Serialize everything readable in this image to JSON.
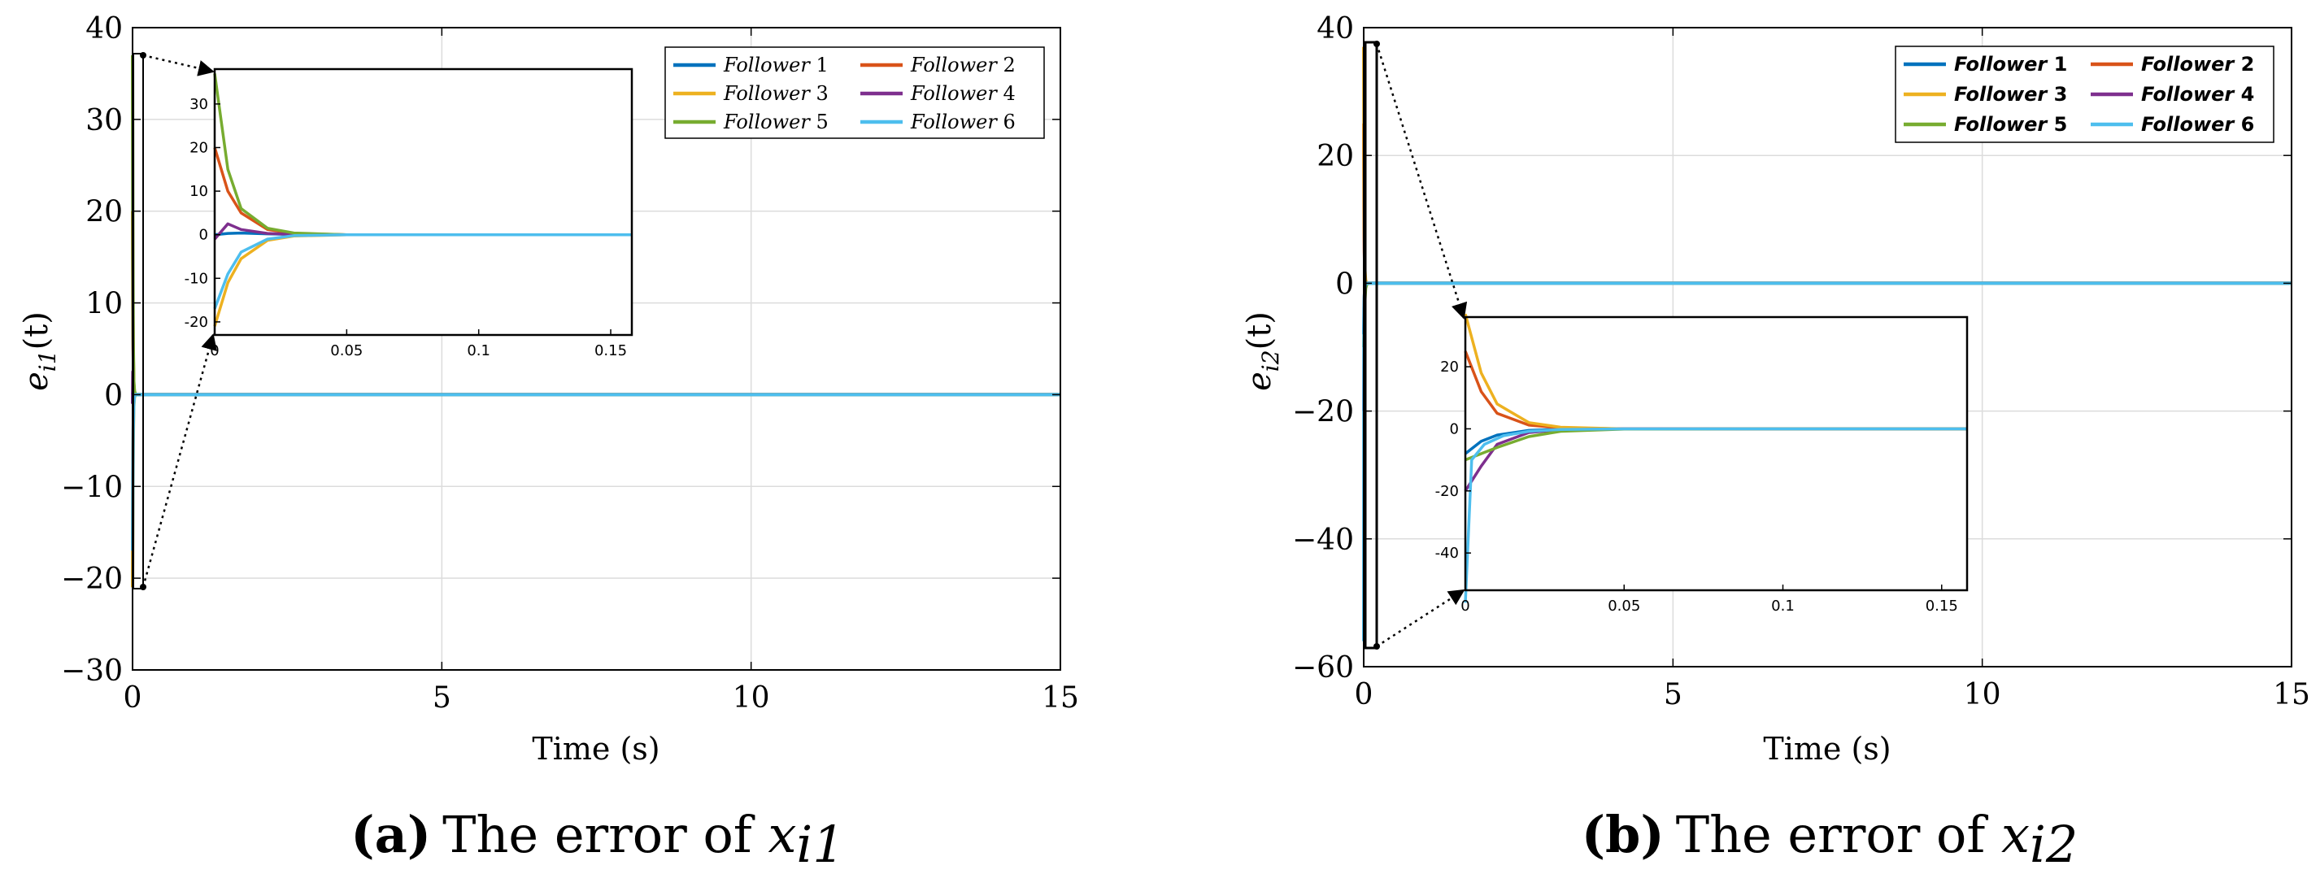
{
  "series_colors": [
    "#0072BD",
    "#D95319",
    "#EDB120",
    "#7E2F8E",
    "#77AC30",
    "#4DBEEE"
  ],
  "chart_data": [
    {
      "type": "line",
      "panel": "a",
      "title": "",
      "xlabel": "Time (s)",
      "ylabel": "e_i1(t)",
      "ylabel_main": "e",
      "ylabel_sub": "i1",
      "ylabel_tail": "(t)",
      "xlim": [
        0,
        15
      ],
      "ylim": [
        -30,
        40
      ],
      "xticks": [
        0,
        5,
        10,
        15
      ],
      "xtick_labels": [
        "0",
        "5",
        "10",
        "15"
      ],
      "yticks": [
        -30,
        -20,
        -10,
        0,
        10,
        20,
        30,
        40
      ],
      "ytick_labels": [
        "−30",
        "−20",
        "−10",
        "0",
        "10",
        "20",
        "30",
        "40"
      ],
      "grid": true,
      "legend_position": "top-right",
      "series": [
        {
          "name": "Follower 1",
          "legend_word": "Follower",
          "legend_num": "1",
          "x": [
            0,
            0.005,
            0.01,
            0.02,
            0.03,
            0.05,
            0.1,
            15
          ],
          "y": [
            0,
            0.3,
            0.4,
            0.2,
            0.05,
            0,
            0,
            0
          ]
        },
        {
          "name": "Follower 2",
          "legend_word": "Follower",
          "legend_num": "2",
          "x": [
            0,
            0.005,
            0.01,
            0.02,
            0.03,
            0.05,
            0.1,
            15
          ],
          "y": [
            20,
            10,
            5,
            1.2,
            0.3,
            0,
            0,
            0
          ]
        },
        {
          "name": "Follower 3",
          "legend_word": "Follower",
          "legend_num": "3",
          "x": [
            0,
            0.005,
            0.01,
            0.02,
            0.03,
            0.05,
            0.1,
            15
          ],
          "y": [
            -21,
            -11,
            -5.5,
            -1.3,
            -0.3,
            0,
            0,
            0
          ]
        },
        {
          "name": "Follower 4",
          "legend_word": "Follower",
          "legend_num": "4",
          "x": [
            0,
            0.005,
            0.01,
            0.02,
            0.03,
            0.05,
            0.1,
            15
          ],
          "y": [
            -1,
            2.5,
            1.2,
            0.3,
            0.05,
            0,
            0,
            0
          ]
        },
        {
          "name": "Follower 5",
          "legend_word": "Follower",
          "legend_num": "5",
          "x": [
            0,
            0.005,
            0.01,
            0.02,
            0.03,
            0.05,
            0.1,
            15
          ],
          "y": [
            37,
            15,
            6,
            1.5,
            0.4,
            0,
            0,
            0
          ]
        },
        {
          "name": "Follower 6",
          "legend_word": "Follower",
          "legend_num": "6",
          "x": [
            0,
            0.005,
            0.01,
            0.02,
            0.03,
            0.05,
            0.1,
            15
          ],
          "y": [
            -17,
            -9,
            -4,
            -1,
            -0.2,
            0,
            0,
            0
          ]
        }
      ],
      "inset": {
        "xlim": [
          0,
          0.158
        ],
        "ylim": [
          -23,
          38
        ],
        "xticks": [
          0,
          0.05,
          0.1,
          0.15
        ],
        "xtick_labels": [
          "0",
          "0.05",
          "0.1",
          "0.15"
        ],
        "yticks": [
          -20,
          -10,
          0,
          10,
          20,
          30
        ],
        "ytick_labels": [
          "-20",
          "-10",
          "0",
          "10",
          "20",
          "30"
        ]
      },
      "caption_letter": "(a)",
      "caption_text": "The error of ",
      "caption_var": "x",
      "caption_sub": "i1"
    },
    {
      "type": "line",
      "panel": "b",
      "title": "",
      "xlabel": "Time (s)",
      "ylabel": "e_i2(t)",
      "ylabel_main": "e",
      "ylabel_sub": "i2",
      "ylabel_tail": "(t)",
      "xlim": [
        0,
        15
      ],
      "ylim": [
        -60,
        40
      ],
      "xticks": [
        0,
        5,
        10,
        15
      ],
      "xtick_labels": [
        "0",
        "5",
        "10",
        "15"
      ],
      "yticks": [
        -60,
        -40,
        -20,
        0,
        20,
        40
      ],
      "ytick_labels": [
        "−60",
        "−40",
        "−20",
        "0",
        "20",
        "40"
      ],
      "grid": true,
      "legend_position": "top-right",
      "series": [
        {
          "name": "Follower 1",
          "legend_word": "Follower",
          "legend_num": "1",
          "x": [
            0,
            0.005,
            0.01,
            0.02,
            0.03,
            0.05,
            0.1,
            15
          ],
          "y": [
            -8,
            -4,
            -2,
            -0.5,
            -0.1,
            0,
            0,
            0
          ]
        },
        {
          "name": "Follower 2",
          "legend_word": "Follower",
          "legend_num": "2",
          "x": [
            0,
            0.005,
            0.01,
            0.02,
            0.03,
            0.05,
            0.1,
            15
          ],
          "y": [
            25,
            12,
            5,
            1.2,
            0.3,
            0,
            0,
            0
          ]
        },
        {
          "name": "Follower 3",
          "legend_word": "Follower",
          "legend_num": "3",
          "x": [
            0,
            0.005,
            0.01,
            0.02,
            0.03,
            0.05,
            0.1,
            15
          ],
          "y": [
            37,
            18,
            8,
            2,
            0.5,
            0,
            0,
            0
          ]
        },
        {
          "name": "Follower 4",
          "legend_word": "Follower",
          "legend_num": "4",
          "x": [
            0,
            0.005,
            0.01,
            0.02,
            0.03,
            0.05,
            0.1,
            15
          ],
          "y": [
            -20,
            -12,
            -5,
            -1.2,
            -0.3,
            0,
            0,
            0
          ]
        },
        {
          "name": "Follower 5",
          "legend_word": "Follower",
          "legend_num": "5",
          "x": [
            0,
            0.005,
            0.01,
            0.02,
            0.03,
            0.05,
            0.1,
            15
          ],
          "y": [
            -10,
            -8,
            -6,
            -2.5,
            -0.8,
            -0.1,
            0,
            0
          ]
        },
        {
          "name": "Follower 6",
          "legend_word": "Follower",
          "legend_num": "6",
          "x": [
            0,
            0.002,
            0.006,
            0.012,
            0.02,
            0.03,
            0.05,
            15
          ],
          "y": [
            -56,
            -10,
            -5,
            -2.2,
            -0.8,
            -0.2,
            0,
            0
          ]
        }
      ],
      "inset": {
        "xlim": [
          0,
          0.158
        ],
        "ylim": [
          -52,
          36
        ],
        "xticks": [
          0,
          0.05,
          0.1,
          0.15
        ],
        "xtick_labels": [
          "0",
          "0.05",
          "0.1",
          "0.15"
        ],
        "yticks": [
          -40,
          -20,
          0,
          20
        ],
        "ytick_labels": [
          "-40",
          "-20",
          "0",
          "20"
        ]
      },
      "caption_letter": "(b)",
      "caption_text": "The error of ",
      "caption_var": "x",
      "caption_sub": "i2"
    }
  ]
}
